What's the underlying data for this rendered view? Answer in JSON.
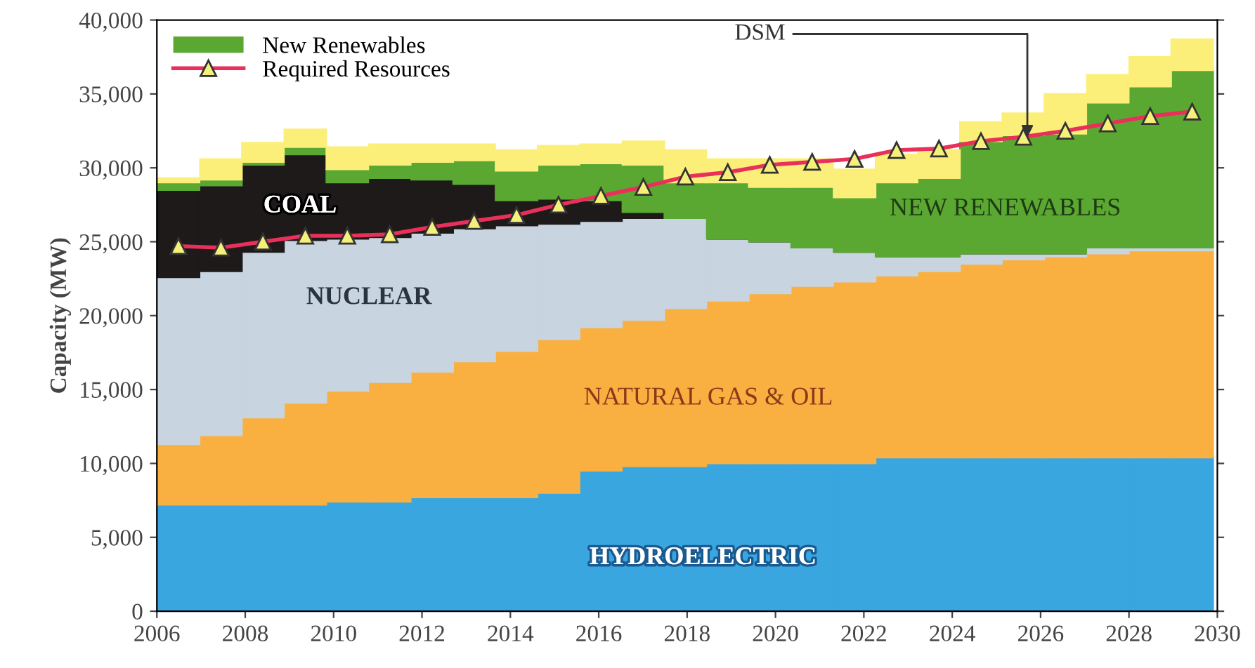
{
  "chart_data": {
    "type": "bar",
    "stacked": true,
    "ylabel": "Capacity (MW)",
    "x": [
      2006.49,
      2007.45,
      2008.4,
      2009.36,
      2010.31,
      2011.27,
      2012.23,
      2013.18,
      2014.14,
      2015.09,
      2016.05,
      2017.01,
      2017.96,
      2018.92,
      2019.87,
      2020.83,
      2021.79,
      2022.74,
      2023.7,
      2024.65,
      2025.61,
      2026.56,
      2027.52,
      2028.48,
      2029.43
    ],
    "series": [
      {
        "color": "#3aa6e0",
        "values": [
          7200,
          7200,
          7200,
          7200,
          7400,
          7400,
          7700,
          7700,
          7700,
          8000,
          9500,
          9800,
          9800,
          10000,
          10000,
          10000,
          10000,
          10400,
          10400,
          10400,
          10400,
          10400,
          10400,
          10400,
          10400
        ]
      },
      {
        "color": "#f9b041",
        "values": [
          4100,
          4700,
          5900,
          6900,
          7500,
          8100,
          8500,
          9200,
          9900,
          10400,
          9700,
          9900,
          10700,
          11000,
          11500,
          12000,
          12300,
          12300,
          12600,
          13100,
          13400,
          13600,
          13800,
          14000,
          14000
        ]
      },
      {
        "color": "#c8d4e0",
        "values": [
          11300,
          11100,
          11200,
          11000,
          10300,
          9800,
          9400,
          9000,
          8500,
          7800,
          7200,
          6900,
          6100,
          4200,
          3500,
          2600,
          2000,
          1300,
          1000,
          700,
          400,
          200,
          400,
          200,
          200
        ]
      },
      {
        "color": "#1e1a1a",
        "values": [
          5900,
          5800,
          5900,
          5800,
          3800,
          4000,
          3600,
          3000,
          1700,
          1700,
          1400,
          400,
          0,
          0,
          0,
          0,
          0,
          0,
          0,
          0,
          0,
          0,
          0,
          0,
          0
        ]
      },
      {
        "name": "New Renewables",
        "color": "#5aa832",
        "values": [
          500,
          400,
          200,
          500,
          900,
          900,
          1200,
          1600,
          2000,
          2300,
          2500,
          3200,
          2400,
          3800,
          3700,
          4100,
          3700,
          5000,
          5300,
          7600,
          8000,
          8100,
          9800,
          10900,
          12000
        ]
      },
      {
        "color": "#fbef7a",
        "values": [
          300,
          1400,
          1300,
          1200,
          1500,
          1400,
          1200,
          1100,
          1400,
          1300,
          1300,
          1600,
          2200,
          1600,
          1900,
          1900,
          1900,
          1900,
          1900,
          1300,
          1500,
          2700,
          1900,
          2000,
          2100
        ]
      },
      {
        "name": "Required Resources",
        "type": "line",
        "color": "#e8305a",
        "marker": "triangle",
        "values": [
          24700,
          24600,
          25000,
          25400,
          25400,
          25500,
          26000,
          26400,
          26800,
          27500,
          28100,
          28700,
          29400,
          29700,
          30200,
          30400,
          30600,
          31200,
          31300,
          31800,
          32100,
          32500,
          33000,
          33500,
          33800
        ]
      }
    ],
    "annotations": [
      "COAL",
      "NUCLEAR",
      "NATURAL GAS & OIL",
      "HYDROELECTRIC",
      "NEW RENEWABLES",
      {
        "text": "DSM",
        "x": 2025.7,
        "y": 31800
      }
    ],
    "xlim": [
      2006,
      2030
    ],
    "xticks": [
      2006,
      2008,
      2010,
      2012,
      2014,
      2016,
      2018,
      2020,
      2022,
      2024,
      2026,
      2028,
      2030
    ],
    "ylim": [
      0,
      40000
    ],
    "yticks": [
      {
        "value": 0,
        "label": "0"
      },
      {
        "value": 5000,
        "label": "5,000"
      },
      {
        "value": 10000,
        "label": "10,000"
      },
      {
        "value": 15000,
        "label": "15,000"
      },
      {
        "value": 20000,
        "label": "20,000"
      },
      {
        "value": 25000,
        "label": "25,000"
      },
      {
        "value": 30000,
        "label": "30,000"
      },
      {
        "value": 35000,
        "label": "35,000"
      },
      {
        "value": 40000,
        "label": "40,000"
      }
    ],
    "legend": "top left"
  }
}
